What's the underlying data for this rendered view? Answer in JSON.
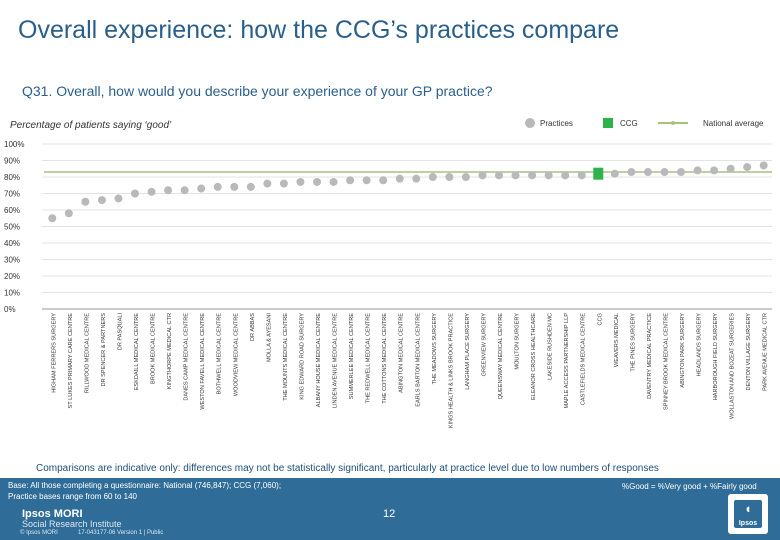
{
  "header": {
    "title": "Overall experience: how the CCG’s practices compare",
    "question": "Q31. Overall, how would you describe your experience of your GP practice?",
    "subtitle": "Percentage of patients saying ‘good’"
  },
  "legend": {
    "practices": "Practices",
    "ccg": "CCG",
    "national": "National average"
  },
  "colors": {
    "practice_dot": "#b9b9b9",
    "ccg_bar": "#2db34a",
    "national_line": "#a8c080",
    "title_text": "#2a5f8c",
    "footer_bg": "#2f6d98"
  },
  "chart_data": {
    "type": "scatter",
    "title": "Percentage of patients saying ‘good’",
    "xlabel": "",
    "ylabel": "",
    "ylim": [
      0,
      100
    ],
    "yticks": [
      "0%",
      "10%",
      "20%",
      "30%",
      "40%",
      "50%",
      "60%",
      "70%",
      "80%",
      "90%",
      "100%"
    ],
    "grid": true,
    "national_average": 83,
    "categories": [
      "HIGHAM FERRERS SURGERY",
      "ST LUKES PRIMARY CARE CENTRE",
      "RILLWOOD MEDICAL CENTRE",
      "DR SPENCER & PARTNERS",
      "DR PASQUALI",
      "ESKDAILL MEDICAL CENTRE",
      "BROOK MEDICAL CENTRE",
      "KINGTHORPE MEDICAL CTR",
      "DANES CAMP MEDICAL CENTRE",
      "WESTON FAVELL MEDICAL CENTRE",
      "BOTHWELL MEDICAL CENTRE",
      "WOODVIEW MEDICAL CENTRE",
      "DR ABBAS",
      "MOLLA & AYESANI",
      "THE MOUNTS MEDICAL CENTRE",
      "KING EDWARD ROAD SURGERY",
      "ALBANY HOUSE MEDICAL CENTRE",
      "LINDEN AVENUE MEDICAL CENTRE",
      "SUMMERLEE MEDICAL CENTRE",
      "THE REDWELL MEDICAL CENTRE",
      "THE COTTONS MEDICAL CENTRE",
      "ABINGTON MEDICAL CENTRE",
      "EARLS BARTON MEDICAL CENTRE",
      "THE MEADOWS SURGERY",
      "KINGS HEALTH & LINKS BROOK PRACTICE",
      "LANGHAM PLACE SURGERY",
      "GREENVIEW SURGERY",
      "QUEENSWAY MEDICAL CENTRE",
      "MOULTON SURGERY",
      "ELEANOR CROSS HEALTHCARE",
      "LAKESIDE RUSHDEN MC",
      "MAPLE ACCESS PARTNERSHIP LLP",
      "CASTLEFIELDS MEDICAL CENTRE",
      "CCG",
      "WEAVERS MEDICAL",
      "THE PINES SURGERY",
      "DAVENTRY MEDICAL PRACTICE",
      "SPINNEY BROOK MEDICAL CENTRE",
      "ABINGTON PARK SURGERY",
      "HEADLANDS SURGERY",
      "HARBOROUGH FIELD SURGERY",
      "WOLLASTON AND BOZEAT SURGERIES",
      "DENTON VILLAGE SURGERY",
      "PARK AVENUE MEDICAL CTR"
    ],
    "values": [
      55,
      58,
      65,
      66,
      67,
      70,
      71,
      72,
      72,
      73,
      74,
      74,
      74,
      76,
      76,
      77,
      77,
      77,
      78,
      78,
      78,
      79,
      79,
      80,
      80,
      80,
      81,
      81,
      81,
      81,
      81,
      81,
      81,
      82,
      82,
      83,
      83,
      83,
      83,
      84,
      84,
      85,
      86,
      87
    ],
    "ccg_index": 33
  },
  "footer": {
    "comparison_note": "Comparisons are indicative only: differences may not be statistically significant, particularly at practice level due to low numbers of responses",
    "base_line1": "Base: All those completing a questionnaire: National (746,847); CCG (7,060);",
    "base_line2": "Practice bases range from 60 to 140",
    "definition": "%Good = %Very good + %Fairly good",
    "page_number": "12",
    "brand_name": "Ipsos MORI",
    "brand_sub": "Social Research Institute",
    "copyright": "© Ipsos MORI",
    "job_ref": "17-043177-06 Version 1 | Public",
    "logo_text": "Ipsos"
  }
}
